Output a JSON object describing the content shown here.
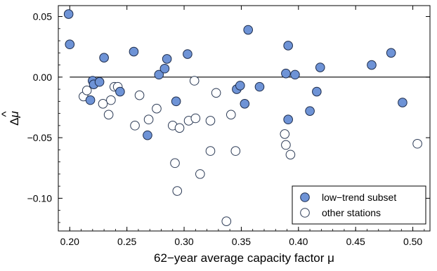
{
  "chart_data": {
    "type": "scatter",
    "xlabel": "62−year average capacity factor μ",
    "ylabel_main": "Δ",
    "ylabel_symbol": "μ",
    "ylabel_accent": "^",
    "xlim": [
      0.19,
      0.515
    ],
    "ylim": [
      -0.127,
      0.059
    ],
    "x_ticks": [
      0.2,
      0.25,
      0.3,
      0.35,
      0.4,
      0.45,
      0.5
    ],
    "x_tick_labels": [
      "0.20",
      "0.25",
      "0.30",
      "0.35",
      "0.40",
      "0.45",
      "0.50"
    ],
    "y_ticks": [
      0.05,
      0.0,
      -0.05,
      -0.1
    ],
    "y_tick_labels": [
      "0.05",
      "0.00",
      "−0.05",
      "−0.10"
    ],
    "reference_line_y": 0.0,
    "reference_line_x_start": 0.2,
    "grid": false,
    "legend_position": "bottom-right",
    "colors": {
      "filled": "#6e93d6",
      "stroke": "#1c2b4a",
      "open": "#ffffff",
      "open_stroke": "#2b3a55"
    },
    "series": [
      {
        "name": "low−trend subset",
        "style": "filled",
        "points": [
          [
            0.199,
            0.052
          ],
          [
            0.2,
            0.027
          ],
          [
            0.218,
            -0.019
          ],
          [
            0.22,
            -0.003
          ],
          [
            0.221,
            -0.006
          ],
          [
            0.226,
            -0.004
          ],
          [
            0.23,
            0.016
          ],
          [
            0.244,
            -0.012
          ],
          [
            0.256,
            0.021
          ],
          [
            0.268,
            -0.048
          ],
          [
            0.278,
            0.002
          ],
          [
            0.283,
            0.007
          ],
          [
            0.285,
            0.015
          ],
          [
            0.293,
            -0.02
          ],
          [
            0.303,
            0.019
          ],
          [
            0.346,
            -0.01
          ],
          [
            0.349,
            -0.007
          ],
          [
            0.353,
            -0.022
          ],
          [
            0.356,
            0.039
          ],
          [
            0.366,
            -0.008
          ],
          [
            0.389,
            0.003
          ],
          [
            0.391,
            0.026
          ],
          [
            0.391,
            -0.035
          ],
          [
            0.397,
            0.002
          ],
          [
            0.41,
            -0.028
          ],
          [
            0.416,
            -0.012
          ],
          [
            0.419,
            0.008
          ],
          [
            0.464,
            0.01
          ],
          [
            0.481,
            0.02
          ],
          [
            0.491,
            -0.021
          ]
        ]
      },
      {
        "name": "other stations",
        "style": "open",
        "points": [
          [
            0.212,
            -0.016
          ],
          [
            0.215,
            -0.011
          ],
          [
            0.229,
            -0.022
          ],
          [
            0.234,
            -0.031
          ],
          [
            0.236,
            -0.019
          ],
          [
            0.239,
            -0.008
          ],
          [
            0.242,
            -0.008
          ],
          [
            0.257,
            -0.04
          ],
          [
            0.261,
            -0.015
          ],
          [
            0.269,
            -0.035
          ],
          [
            0.276,
            -0.026
          ],
          [
            0.29,
            -0.04
          ],
          [
            0.292,
            -0.071
          ],
          [
            0.294,
            -0.094
          ],
          [
            0.296,
            -0.042
          ],
          [
            0.304,
            -0.036
          ],
          [
            0.309,
            -0.003
          ],
          [
            0.31,
            -0.034
          ],
          [
            0.314,
            -0.08
          ],
          [
            0.323,
            -0.061
          ],
          [
            0.323,
            -0.036
          ],
          [
            0.328,
            -0.013
          ],
          [
            0.337,
            -0.119
          ],
          [
            0.341,
            -0.031
          ],
          [
            0.345,
            -0.061
          ],
          [
            0.388,
            -0.047
          ],
          [
            0.389,
            -0.056
          ],
          [
            0.393,
            -0.064
          ],
          [
            0.504,
            -0.055
          ]
        ]
      }
    ]
  }
}
